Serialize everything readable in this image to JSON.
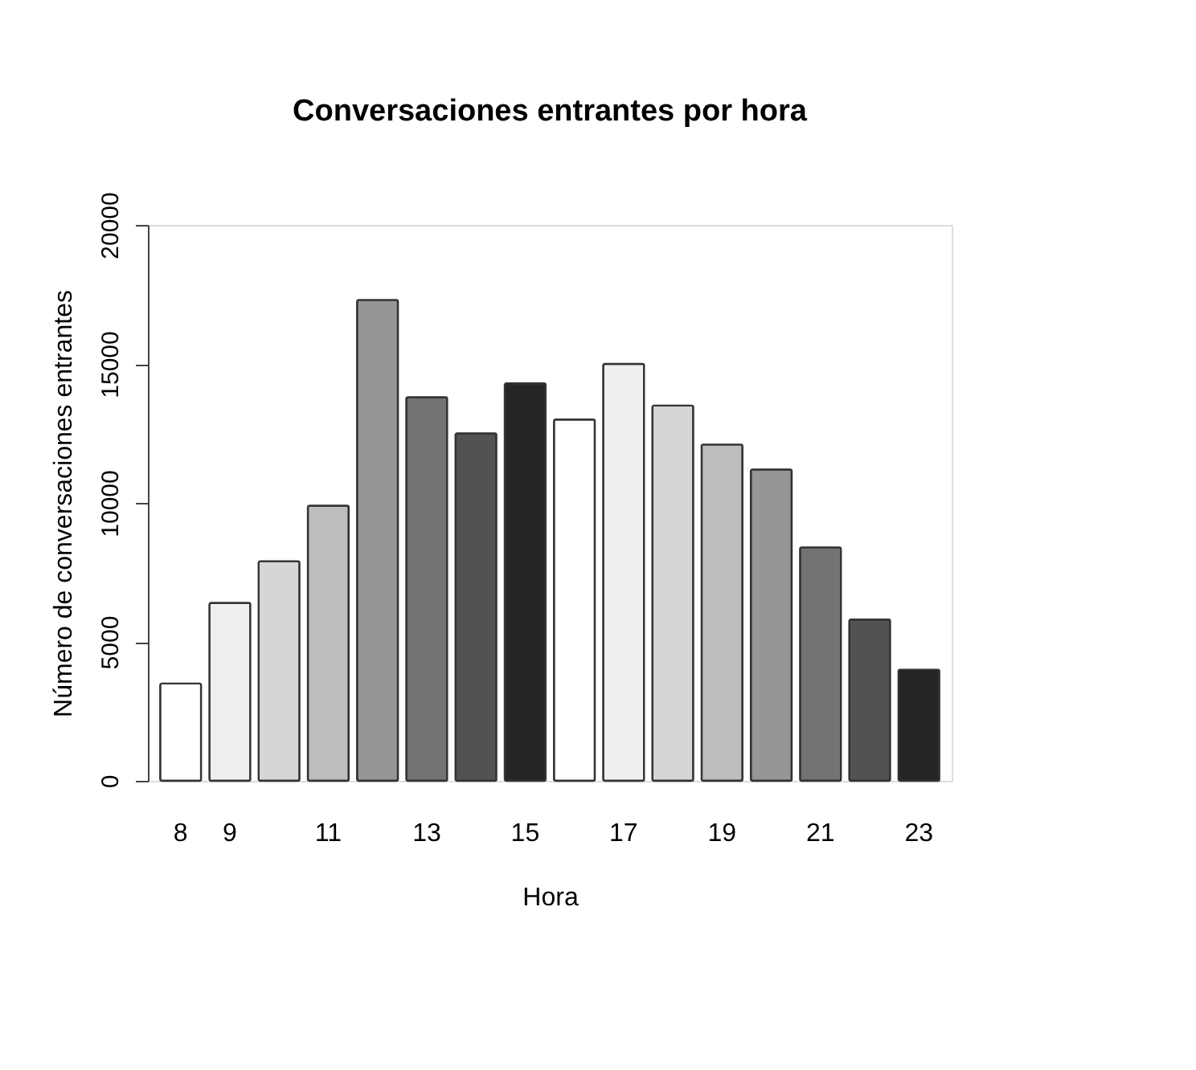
{
  "chart_data": {
    "type": "bar",
    "title": "Conversaciones entrantes por hora",
    "xlabel": "Hora",
    "ylabel": "Número de conversaciones entrantes",
    "categories": [
      "8",
      "9",
      null,
      "11",
      null,
      "13",
      null,
      "15",
      null,
      "17",
      null,
      "19",
      null,
      "21",
      null,
      "23"
    ],
    "values": [
      3500,
      6400,
      7900,
      9900,
      17300,
      13800,
      12500,
      14300,
      13000,
      15000,
      13500,
      12100,
      11200,
      8400,
      5800,
      4000
    ],
    "colors": [
      "#ffffff",
      "#efefef",
      "#d6d6d6",
      "#bdbdbd",
      "#969696",
      "#737373",
      "#525252",
      "#252525",
      "#ffffff",
      "#efefef",
      "#d6d6d6",
      "#bdbdbd",
      "#969696",
      "#737373",
      "#525252",
      "#252525"
    ],
    "ylim": [
      0,
      20000
    ],
    "yticks": [
      0,
      5000,
      10000,
      15000,
      20000
    ],
    "grid": false
  }
}
